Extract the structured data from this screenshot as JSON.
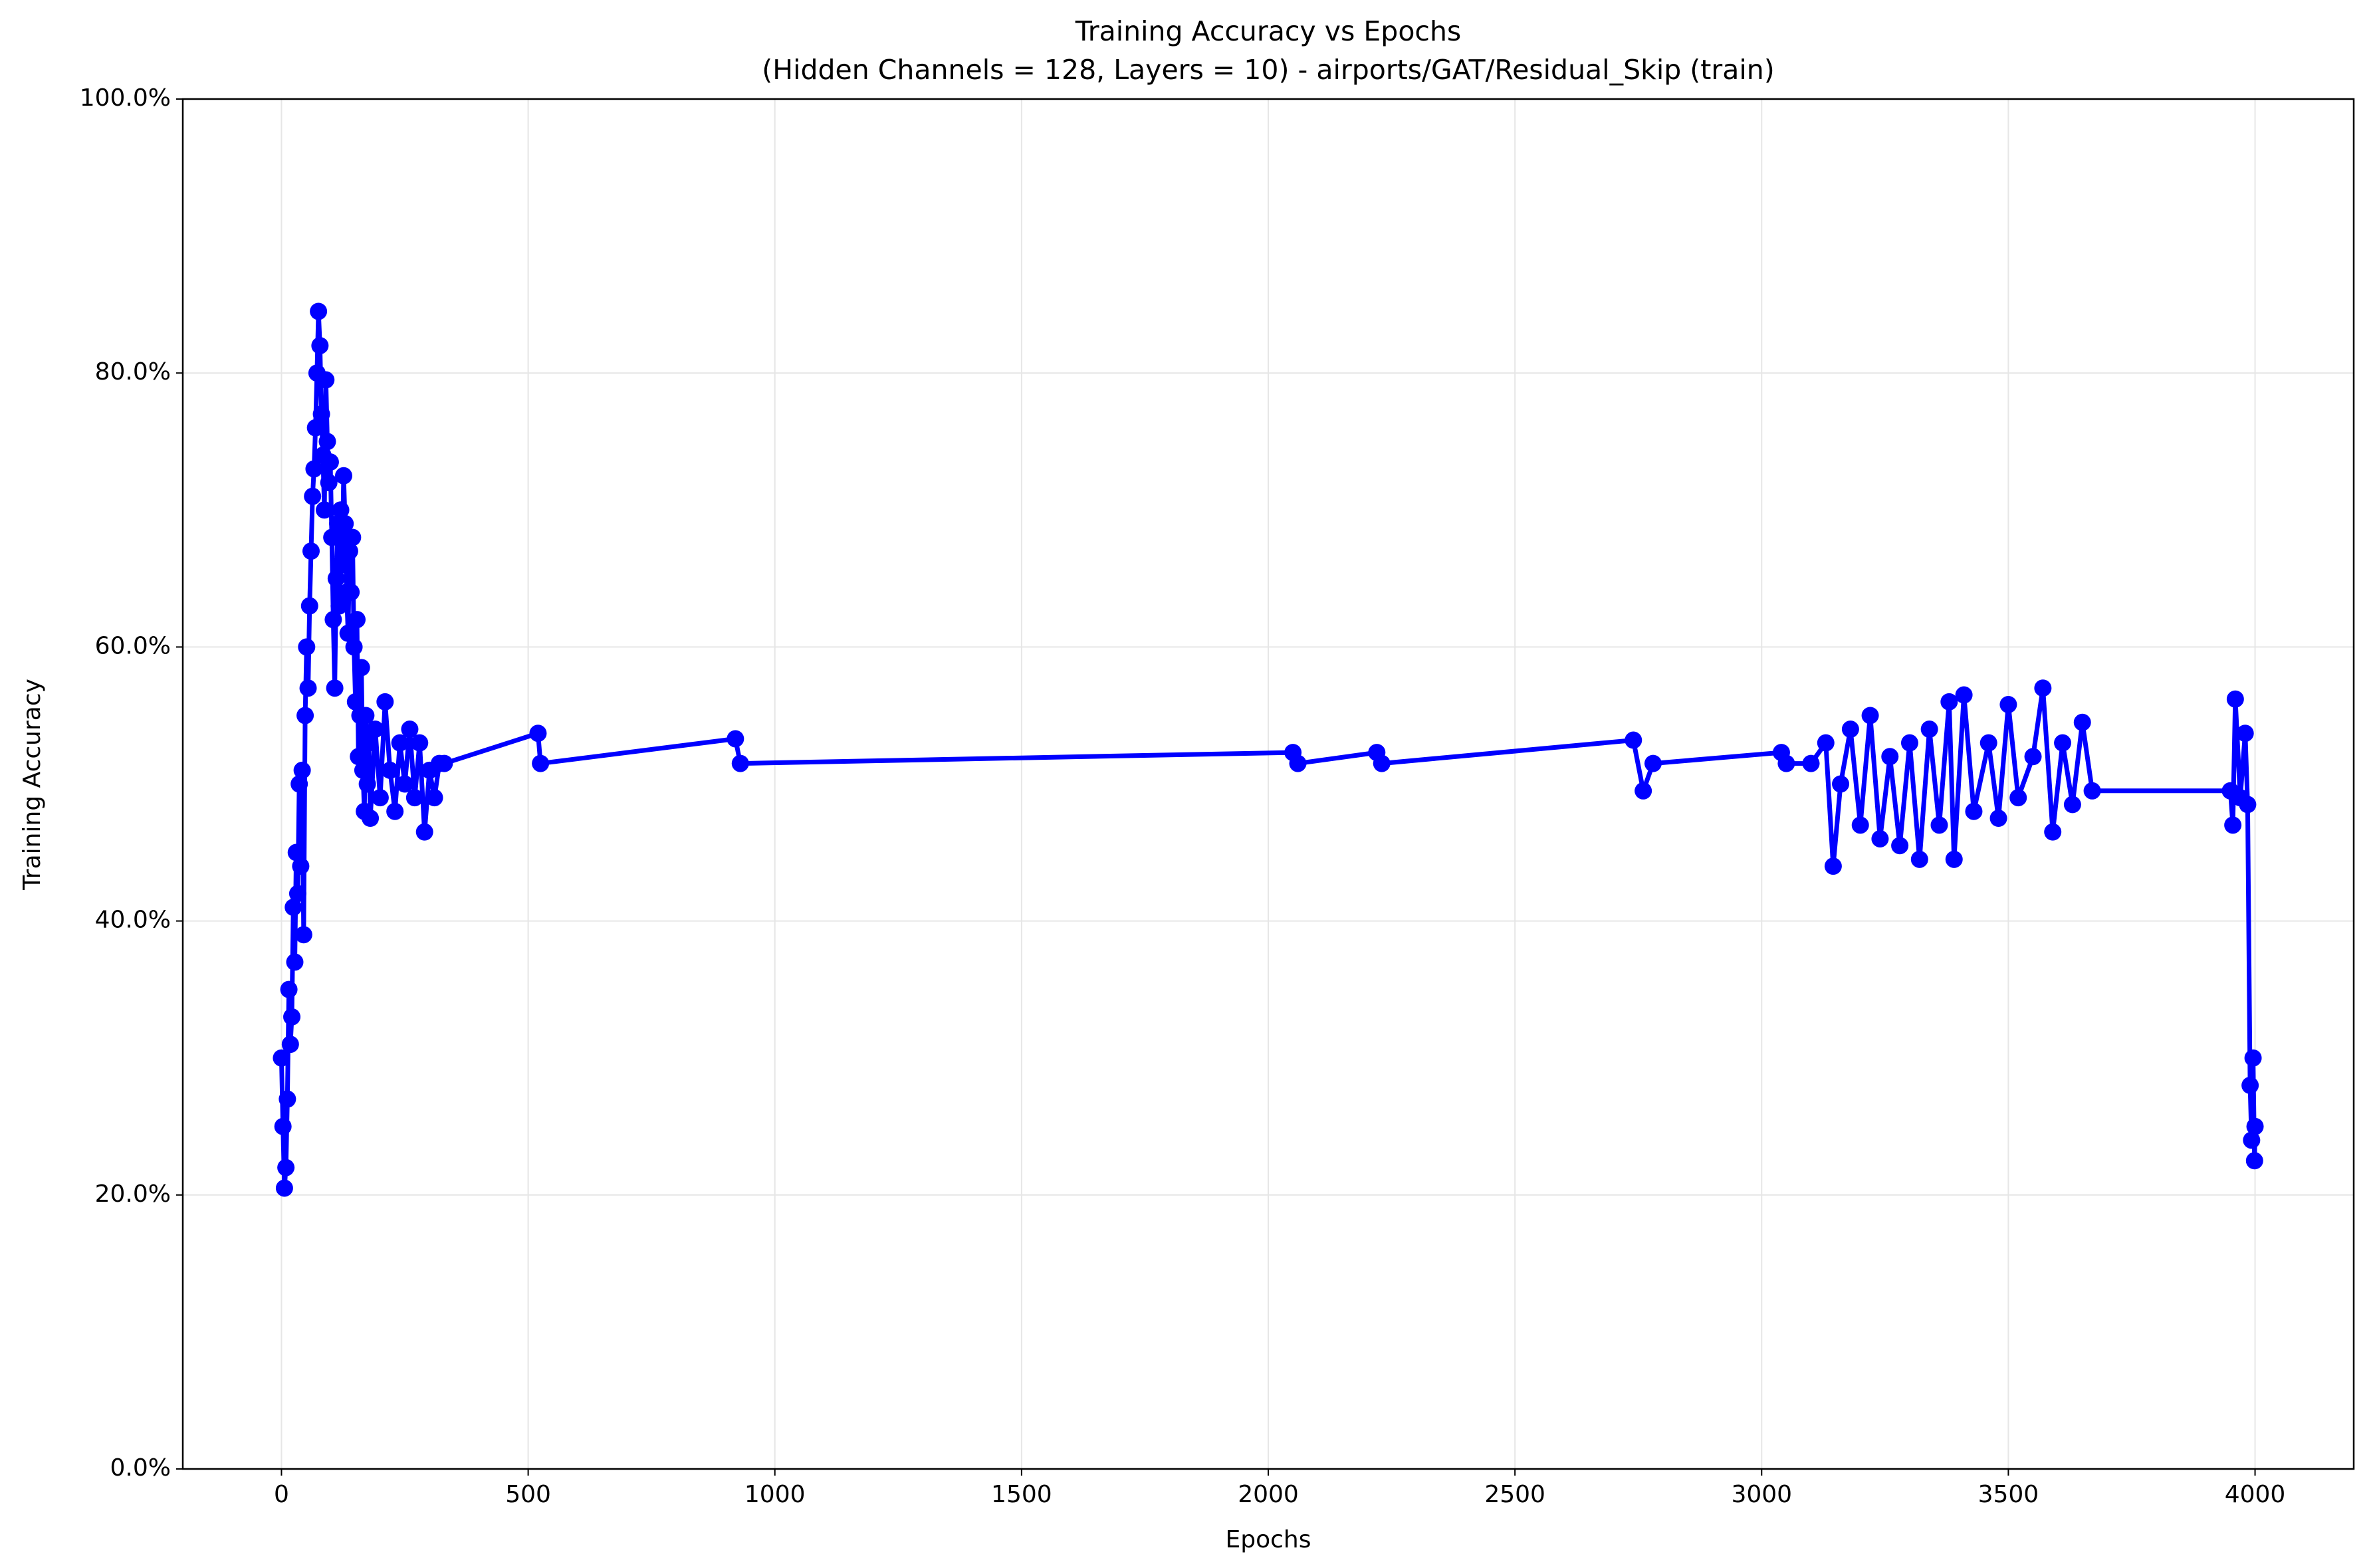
{
  "chart_data": {
    "type": "line",
    "title": "Training Accuracy vs Epochs",
    "subtitle": "(Hidden Channels = 128, Layers = 10) - airports/GAT/Residual_Skip (train)",
    "x_label": "Epochs",
    "y_label": "Training Accuracy",
    "x": [
      0,
      3,
      6,
      9,
      12,
      15,
      18,
      21,
      24,
      27,
      30,
      33,
      36,
      39,
      42,
      45,
      48,
      51,
      54,
      57,
      60,
      63,
      66,
      69,
      72,
      75,
      78,
      81,
      84,
      87,
      90,
      93,
      96,
      99,
      102,
      105,
      108,
      111,
      114,
      117,
      120,
      123,
      126,
      129,
      132,
      135,
      138,
      141,
      144,
      147,
      150,
      153,
      156,
      159,
      162,
      165,
      168,
      171,
      174,
      177,
      180,
      190,
      200,
      210,
      220,
      230,
      240,
      250,
      260,
      270,
      280,
      290,
      300,
      310,
      320,
      330,
      520,
      525,
      920,
      930,
      2050,
      2060,
      2220,
      2230,
      2740,
      2760,
      2780,
      3040,
      3050,
      3100,
      3130,
      3145,
      3160,
      3180,
      3200,
      3220,
      3240,
      3260,
      3280,
      3300,
      3320,
      3340,
      3360,
      3380,
      3390,
      3410,
      3430,
      3460,
      3480,
      3500,
      3520,
      3550,
      3570,
      3590,
      3610,
      3630,
      3650,
      3670,
      3950,
      3955,
      3960,
      3970,
      3980,
      3985,
      3990,
      3993,
      3996,
      3999,
      4000
    ],
    "values": [
      30,
      25,
      20.5,
      22,
      27,
      35,
      31,
      33,
      41,
      37,
      45,
      42,
      50,
      44,
      51,
      39,
      55,
      60,
      57,
      63,
      67,
      71,
      73,
      76,
      80,
      84.5,
      82,
      77,
      74,
      70,
      79.5,
      75,
      72,
      73.5,
      68,
      62,
      57,
      65,
      69,
      63,
      70,
      66,
      72.5,
      69,
      64,
      61,
      67,
      64,
      68,
      60,
      56,
      62,
      52,
      55,
      58.5,
      51,
      48,
      55,
      50,
      53,
      47.5,
      54,
      49,
      56,
      51,
      48,
      53,
      50,
      54,
      49,
      53,
      46.5,
      51,
      49,
      51.5,
      51.5,
      53.7,
      51.5,
      53.3,
      51.5,
      52.3,
      51.5,
      52.3,
      51.5,
      53.2,
      49.5,
      51.5,
      52.3,
      51.5,
      51.5,
      53,
      44,
      50,
      54,
      47,
      55,
      46,
      52,
      45.5,
      53,
      44.5,
      54,
      47,
      56,
      44.5,
      56.5,
      48,
      53,
      47.5,
      55.8,
      49,
      52,
      57,
      46.5,
      53,
      48.5,
      54.5,
      49.5,
      49.5,
      47,
      56.2,
      49,
      53.7,
      48.5,
      28,
      24,
      30,
      22.5,
      25
    ],
    "color": "#0000ff",
    "marker": "o",
    "grid": true,
    "xlim": [
      -200,
      4200
    ],
    "xticks": [
      0,
      500,
      1000,
      1500,
      2000,
      2500,
      3000,
      3500,
      4000
    ],
    "ylim": [
      0,
      100
    ],
    "yticks": [
      {
        "value": 0,
        "label": "0.0%"
      },
      {
        "value": 20,
        "label": "20.0%"
      },
      {
        "value": 40,
        "label": "40.0%"
      },
      {
        "value": 60,
        "label": "60.0%"
      },
      {
        "value": 80,
        "label": "80.0%"
      },
      {
        "value": 100,
        "label": "100.0%"
      }
    ]
  }
}
